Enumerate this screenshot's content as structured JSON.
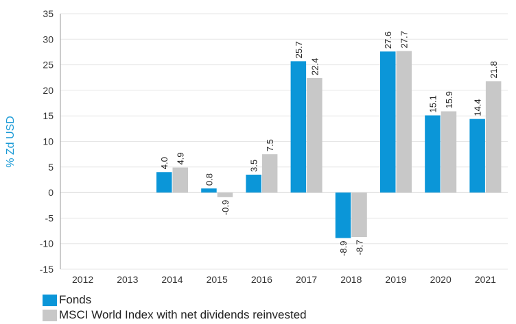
{
  "chart_data": {
    "type": "bar",
    "categories": [
      "2012",
      "2013",
      "2014",
      "2015",
      "2016",
      "2017",
      "2018",
      "2019",
      "2020",
      "2021"
    ],
    "series": [
      {
        "name": "Fonds",
        "color": "#0b96d8",
        "values": [
          null,
          null,
          4.0,
          0.8,
          3.5,
          25.7,
          -8.9,
          27.6,
          15.1,
          14.4
        ],
        "labels": [
          "",
          "",
          "4.0",
          "0.8",
          "3.5",
          "25.7",
          "-8.9",
          "27.6",
          "15.1",
          "14.4"
        ]
      },
      {
        "name": "MSCI World Index with net dividends reinvested",
        "color": "#c8c8c8",
        "values": [
          null,
          null,
          4.9,
          -0.9,
          7.5,
          22.4,
          -8.7,
          27.7,
          15.9,
          21.8
        ],
        "labels": [
          "",
          "",
          "4.9",
          "-0.9",
          "7.5",
          "22.4",
          "-8.7",
          "27.7",
          "15.9",
          "21.8"
        ]
      }
    ],
    "ylabel": "% Zd USD",
    "xlabel": "",
    "ylim": [
      -15,
      35
    ],
    "yticks": [
      "-15",
      "-10",
      "-5",
      "0",
      "5",
      "10",
      "15",
      "20",
      "25",
      "30",
      "35"
    ],
    "grid": true,
    "legend_position": "bottom-left"
  }
}
